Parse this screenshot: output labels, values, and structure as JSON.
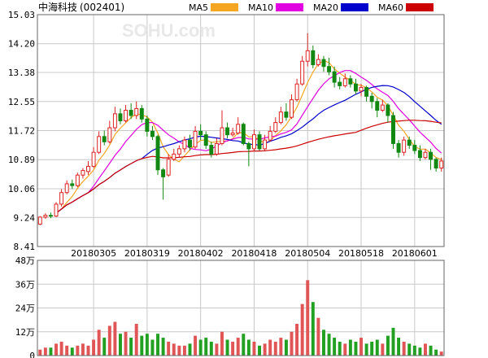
{
  "title": "中海科技",
  "code": "(002401)",
  "watermark": "SOHU.com",
  "legend": [
    {
      "label": "MA5",
      "color": "#f5a623"
    },
    {
      "label": "MA10",
      "color": "#e000e0"
    },
    {
      "label": "MA20",
      "color": "#0000cc"
    },
    {
      "label": "MA60",
      "color": "#cc0000"
    }
  ],
  "colors": {
    "up": "#dd2222",
    "down": "#118811",
    "grid": "#c8c8c8",
    "frame": "#666666"
  },
  "chart_data": {
    "type": "candlestick",
    "ylim": [
      8.41,
      15.03
    ],
    "price_ticks": [
      8.41,
      9.24,
      10.06,
      10.89,
      11.72,
      12.55,
      13.38,
      14.2,
      15.03
    ],
    "price_tick_labels": [
      "8.41",
      "9.24",
      "10.06",
      "10.89",
      "11.72",
      "12.55",
      "13.38",
      "14.20",
      "15.03"
    ],
    "date_labels": [
      {
        "index": 10,
        "label": "20180305"
      },
      {
        "index": 20,
        "label": "20180319"
      },
      {
        "index": 30,
        "label": "20180402"
      },
      {
        "index": 40,
        "label": "20180418"
      },
      {
        "index": 50,
        "label": "20180504"
      },
      {
        "index": 60,
        "label": "20180518"
      },
      {
        "index": 70,
        "label": "20180601"
      }
    ],
    "volume_ylim": [
      0,
      48
    ],
    "volume_ticks": [
      0,
      12,
      24,
      36,
      48
    ],
    "volume_tick_labels": [
      "0",
      "12万",
      "24万",
      "36万",
      "48万"
    ],
    "candles": [
      [
        9.05,
        9.25,
        9.02,
        9.28
      ],
      [
        9.25,
        9.3,
        9.2,
        9.36
      ],
      [
        9.3,
        9.28,
        9.22,
        9.38
      ],
      [
        9.28,
        9.62,
        9.25,
        9.68
      ],
      [
        9.62,
        9.95,
        9.55,
        10.05
      ],
      [
        9.95,
        10.2,
        9.9,
        10.3
      ],
      [
        10.2,
        10.15,
        10.05,
        10.32
      ],
      [
        10.15,
        10.45,
        10.1,
        10.52
      ],
      [
        10.45,
        10.58,
        10.35,
        10.65
      ],
      [
        10.55,
        10.7,
        10.45,
        10.85
      ],
      [
        10.7,
        11.1,
        10.65,
        11.25
      ],
      [
        11.1,
        11.55,
        11.05,
        11.7
      ],
      [
        11.55,
        11.4,
        11.3,
        11.72
      ],
      [
        11.4,
        11.8,
        11.35,
        12.0
      ],
      [
        11.8,
        12.2,
        11.7,
        12.4
      ],
      [
        12.2,
        12.0,
        11.9,
        12.35
      ],
      [
        12.0,
        12.3,
        11.95,
        12.45
      ],
      [
        12.3,
        12.15,
        12.05,
        12.5
      ],
      [
        12.15,
        12.35,
        12.05,
        12.55
      ],
      [
        12.35,
        12.05,
        11.95,
        12.45
      ],
      [
        12.05,
        11.7,
        11.55,
        12.15
      ],
      [
        11.7,
        11.55,
        11.45,
        11.85
      ],
      [
        11.55,
        10.6,
        10.45,
        11.6
      ],
      [
        10.6,
        10.4,
        9.75,
        10.65
      ],
      [
        10.45,
        10.9,
        10.4,
        11.05
      ],
      [
        10.9,
        11.05,
        10.85,
        11.2
      ],
      [
        11.05,
        11.2,
        10.95,
        11.3
      ],
      [
        11.2,
        11.45,
        11.1,
        11.55
      ],
      [
        11.45,
        11.25,
        11.15,
        11.6
      ],
      [
        11.25,
        11.7,
        11.2,
        11.85
      ],
      [
        11.7,
        11.6,
        11.45,
        11.9
      ],
      [
        11.6,
        11.3,
        11.2,
        11.7
      ],
      [
        11.3,
        11.05,
        10.95,
        11.4
      ],
      [
        11.05,
        11.35,
        11.0,
        11.5
      ],
      [
        11.35,
        11.8,
        11.3,
        12.3
      ],
      [
        11.8,
        11.6,
        11.5,
        11.95
      ],
      [
        11.6,
        11.65,
        11.55,
        11.8
      ],
      [
        11.65,
        11.9,
        11.6,
        12.1
      ],
      [
        11.9,
        11.35,
        11.3,
        11.95
      ],
      [
        11.35,
        11.2,
        10.7,
        11.4
      ],
      [
        11.2,
        11.6,
        11.15,
        11.75
      ],
      [
        11.6,
        11.2,
        11.15,
        11.7
      ],
      [
        11.2,
        11.45,
        11.15,
        11.6
      ],
      [
        11.45,
        11.7,
        11.4,
        11.85
      ],
      [
        11.7,
        11.95,
        11.65,
        12.1
      ],
      [
        11.95,
        12.25,
        11.9,
        12.4
      ],
      [
        12.25,
        12.1,
        12.0,
        12.5
      ],
      [
        12.1,
        12.6,
        12.05,
        12.75
      ],
      [
        12.6,
        13.05,
        12.55,
        13.2
      ],
      [
        13.05,
        13.7,
        13.0,
        13.85
      ],
      [
        13.7,
        14.0,
        13.55,
        14.5
      ],
      [
        14.0,
        13.6,
        13.5,
        14.15
      ],
      [
        13.6,
        13.75,
        13.55,
        13.9
      ],
      [
        13.75,
        13.55,
        13.4,
        13.85
      ],
      [
        13.55,
        13.4,
        13.3,
        13.8
      ],
      [
        13.4,
        13.1,
        12.95,
        13.55
      ],
      [
        13.1,
        13.0,
        12.9,
        13.25
      ],
      [
        13.0,
        13.2,
        12.95,
        13.35
      ],
      [
        13.2,
        13.05,
        12.95,
        13.3
      ],
      [
        13.05,
        12.85,
        12.75,
        13.2
      ],
      [
        12.85,
        12.95,
        12.7,
        13.05
      ],
      [
        12.95,
        12.7,
        12.55,
        13.0
      ],
      [
        12.7,
        12.55,
        12.35,
        12.8
      ],
      [
        12.55,
        12.3,
        12.1,
        12.65
      ],
      [
        12.3,
        12.45,
        12.25,
        12.6
      ],
      [
        12.45,
        12.15,
        11.95,
        12.5
      ],
      [
        12.15,
        11.35,
        11.2,
        12.25
      ],
      [
        11.35,
        11.1,
        10.95,
        11.45
      ],
      [
        11.1,
        11.45,
        11.0,
        11.55
      ],
      [
        11.45,
        11.3,
        11.2,
        11.55
      ],
      [
        11.3,
        11.15,
        11.05,
        11.45
      ],
      [
        11.15,
        10.95,
        10.85,
        11.3
      ],
      [
        10.95,
        11.1,
        10.9,
        11.2
      ],
      [
        11.1,
        10.9,
        10.6,
        11.2
      ],
      [
        10.9,
        10.65,
        10.55,
        10.95
      ],
      [
        10.65,
        10.85,
        10.55,
        10.95
      ]
    ],
    "volume": [
      3,
      4,
      4,
      6,
      7,
      5,
      4,
      5,
      6,
      5,
      8,
      13,
      9,
      15,
      17,
      11,
      12,
      9,
      16,
      10,
      11,
      8,
      11,
      9,
      7,
      6,
      5,
      5,
      6,
      10,
      8,
      9,
      7,
      6,
      12,
      8,
      7,
      9,
      11,
      8,
      7,
      5,
      6,
      8,
      7,
      9,
      8,
      12,
      16,
      26,
      38,
      27,
      19,
      13,
      11,
      9,
      7,
      6,
      8,
      7,
      9,
      6,
      7,
      8,
      6,
      10,
      14,
      9,
      7,
      6,
      5,
      4,
      6,
      5,
      3,
      2
    ]
  }
}
